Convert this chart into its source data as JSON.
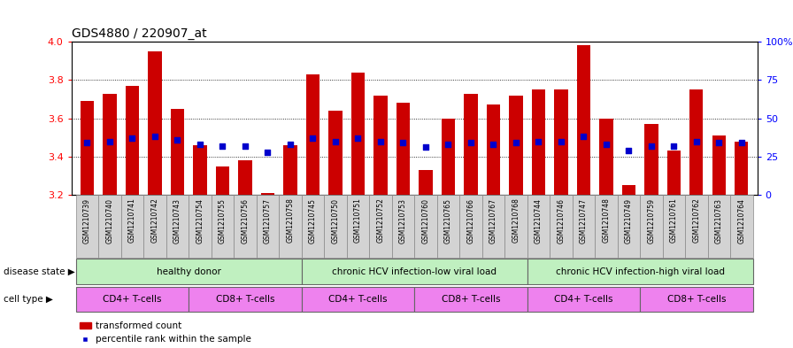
{
  "title": "GDS4880 / 220907_at",
  "samples": [
    "GSM1210739",
    "GSM1210740",
    "GSM1210741",
    "GSM1210742",
    "GSM1210743",
    "GSM1210754",
    "GSM1210755",
    "GSM1210756",
    "GSM1210757",
    "GSM1210758",
    "GSM1210745",
    "GSM1210750",
    "GSM1210751",
    "GSM1210752",
    "GSM1210753",
    "GSM1210760",
    "GSM1210765",
    "GSM1210766",
    "GSM1210767",
    "GSM1210768",
    "GSM1210744",
    "GSM1210746",
    "GSM1210747",
    "GSM1210748",
    "GSM1210749",
    "GSM1210759",
    "GSM1210761",
    "GSM1210762",
    "GSM1210763",
    "GSM1210764"
  ],
  "bar_values": [
    3.69,
    3.73,
    3.77,
    3.95,
    3.65,
    3.46,
    3.35,
    3.38,
    3.21,
    3.46,
    3.83,
    3.64,
    3.84,
    3.72,
    3.68,
    3.33,
    3.6,
    3.73,
    3.67,
    3.72,
    3.75,
    3.75,
    3.98,
    3.6,
    3.25,
    3.57,
    3.43,
    3.75,
    3.51,
    3.48
  ],
  "percentile_values": [
    34,
    35,
    37,
    38,
    36,
    33,
    32,
    32,
    28,
    33,
    37,
    35,
    37,
    35,
    34,
    31,
    33,
    34,
    33,
    34,
    35,
    35,
    38,
    33,
    29,
    32,
    32,
    35,
    34,
    34
  ],
  "ymin": 3.2,
  "ymax": 4.0,
  "yticks": [
    3.2,
    3.4,
    3.6,
    3.8,
    4.0
  ],
  "right_yticks": [
    0,
    25,
    50,
    75,
    100
  ],
  "bar_color": "#CC0000",
  "percentile_color": "#0000CC",
  "bar_width": 0.6,
  "disease_state_label": "disease state",
  "cell_type_label": "cell type",
  "disease_groups": [
    {
      "label": "healthy donor",
      "start": 0,
      "end": 10
    },
    {
      "label": "chronic HCV infection-low viral load",
      "start": 10,
      "end": 20
    },
    {
      "label": "chronic HCV infection-high viral load",
      "start": 20,
      "end": 30
    }
  ],
  "cell_type_groups": [
    {
      "label": "CD4+ T-cells",
      "start": 0,
      "end": 5
    },
    {
      "label": "CD8+ T-cells",
      "start": 5,
      "end": 10
    },
    {
      "label": "CD4+ T-cells",
      "start": 10,
      "end": 15
    },
    {
      "label": "CD8+ T-cells",
      "start": 15,
      "end": 20
    },
    {
      "label": "CD4+ T-cells",
      "start": 20,
      "end": 25
    },
    {
      "label": "CD8+ T-cells",
      "start": 25,
      "end": 30
    }
  ],
  "disease_color": "#C0F0C0",
  "cell_cd4_color": "#EE82EE",
  "cell_cd8_color": "#EE82EE",
  "legend_bar_label": "transformed count",
  "legend_dot_label": "percentile rank within the sample",
  "plot_bg_color": "#FFFFFF",
  "tick_bg_color": "#D3D3D3"
}
